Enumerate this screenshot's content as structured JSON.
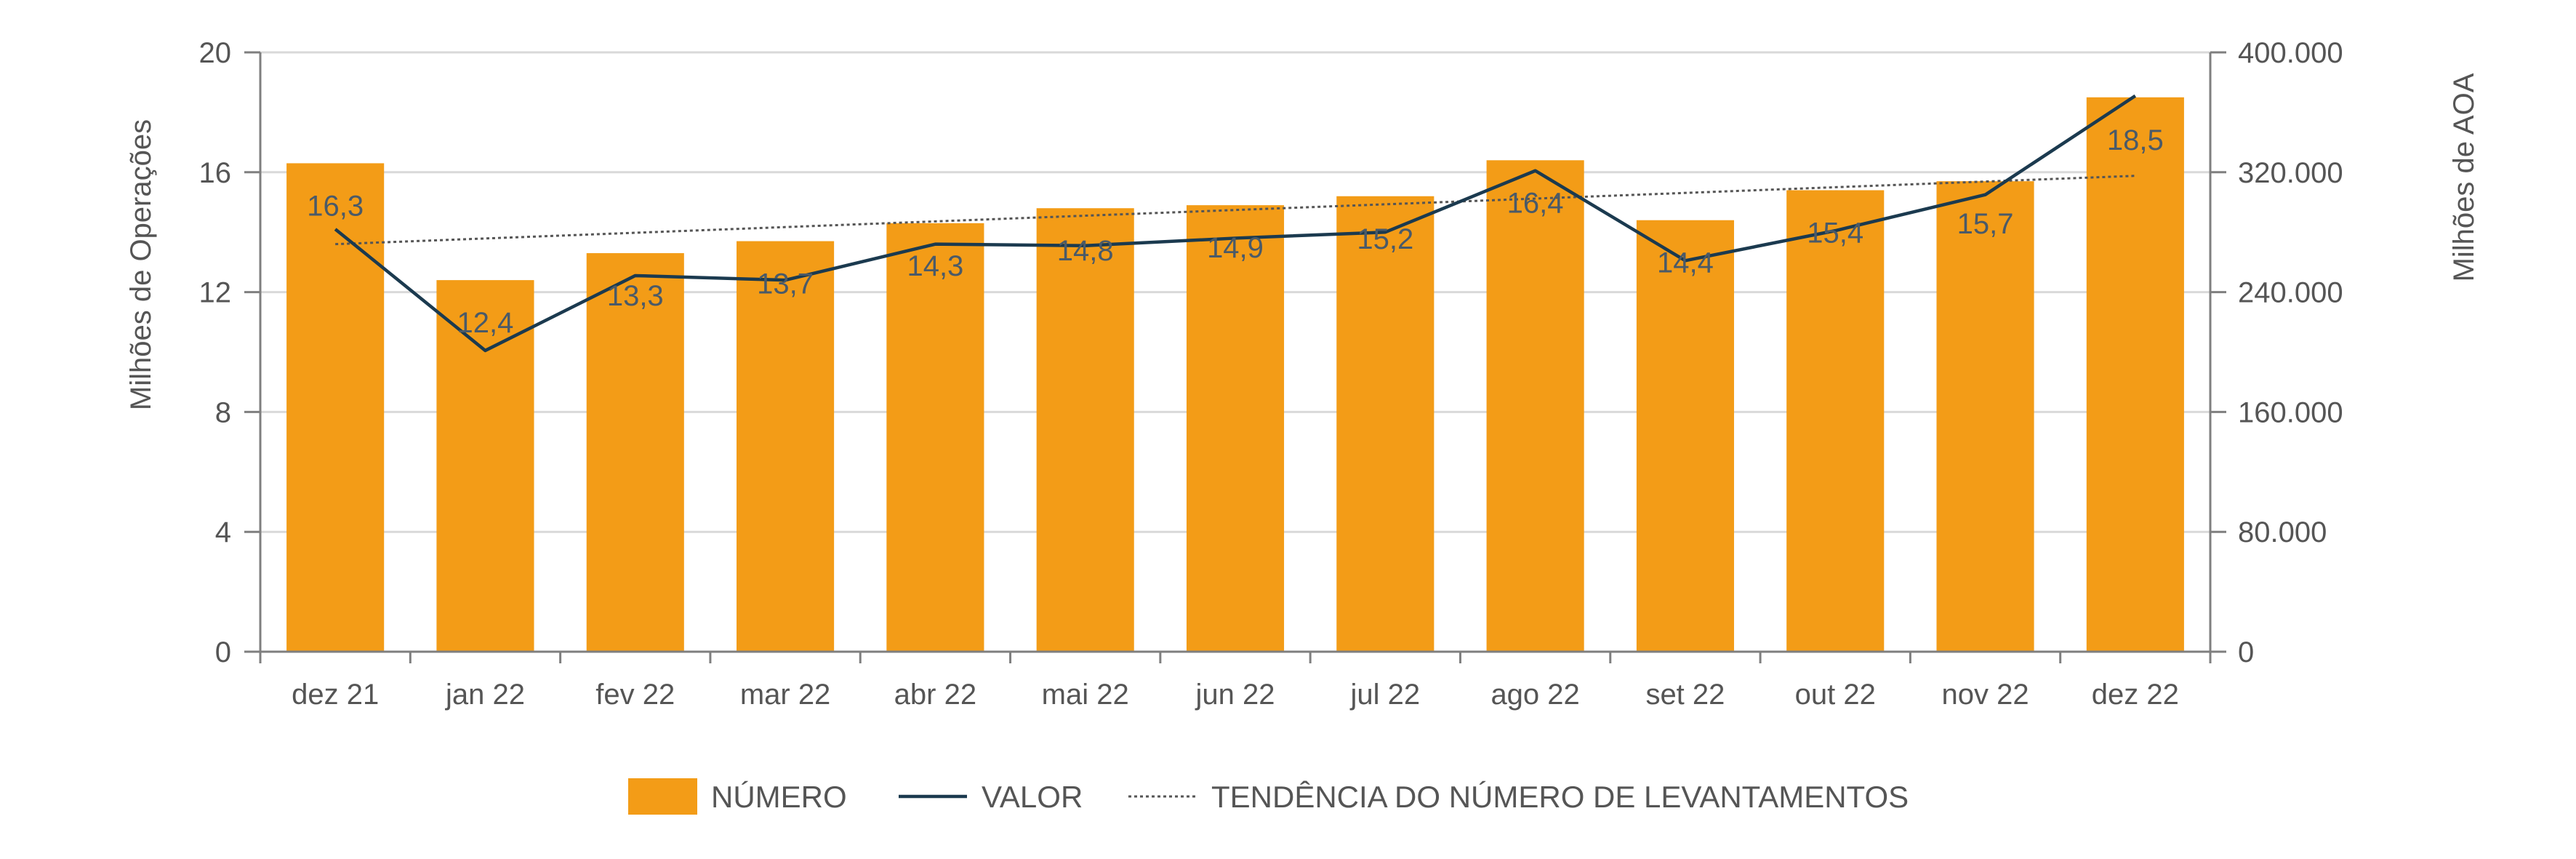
{
  "colors": {
    "bar": "#F39C17",
    "line": "#1B3A4F",
    "trend": "#555555",
    "grid": "#D9D9D9",
    "axis": "#7F7F7F",
    "text": "#555555",
    "label": "#4A5A68"
  },
  "chart_data": {
    "type": "bar",
    "categories": [
      "dez 21",
      "jan 22",
      "fev 22",
      "mar 22",
      "abr 22",
      "mai 22",
      "jun 22",
      "jul 22",
      "ago 22",
      "set 22",
      "out 22",
      "nov 22",
      "dez 22"
    ],
    "series": [
      {
        "name": "NÚMERO",
        "type": "bar",
        "axis": "left",
        "values": [
          16.3,
          12.4,
          13.3,
          13.7,
          14.3,
          14.8,
          14.9,
          15.2,
          16.4,
          14.4,
          15.4,
          15.7,
          18.5
        ],
        "labels": [
          "16,3",
          "12,4",
          "13,3",
          "13,7",
          "14,3",
          "14,8",
          "14,9",
          "15,2",
          "16,4",
          "14,4",
          "15,4",
          "15,7",
          "18,5"
        ]
      },
      {
        "name": "VALOR",
        "type": "line",
        "axis": "right",
        "values": [
          282000,
          201000,
          251000,
          248000,
          272000,
          271000,
          276000,
          280000,
          321000,
          261000,
          281000,
          305000,
          371000
        ]
      },
      {
        "name": "TENDÊNCIA DO NÚMERO DE LEVANTAMENTOS",
        "type": "trendline",
        "axis": "left",
        "values": [
          13.6,
          13.79,
          13.98,
          14.17,
          14.36,
          14.55,
          14.74,
          14.93,
          15.12,
          15.31,
          15.5,
          15.69,
          15.88
        ]
      }
    ],
    "ylabel": "Milhões de Operações",
    "ylim": [
      0,
      20
    ],
    "yticks": [
      0,
      4,
      8,
      12,
      16,
      20
    ],
    "ytick_labels": [
      "0",
      "4",
      "8",
      "12",
      "16",
      "20"
    ],
    "y2label": "Milhões de AOA",
    "y2lim": [
      0,
      400000
    ],
    "y2ticks": [
      0,
      80000,
      160000,
      240000,
      320000,
      400000
    ],
    "y2tick_labels": [
      "0",
      "80.000",
      "160.000",
      "240.000",
      "320.000",
      "400.000"
    ],
    "grid": true,
    "legend": "bottom-center"
  }
}
